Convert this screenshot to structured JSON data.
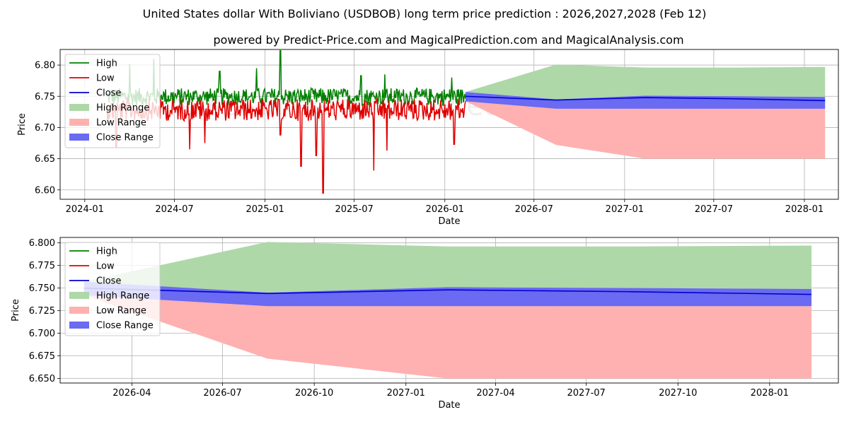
{
  "header": {
    "title": "United States dollar With Boliviano (USDBOB) long term price prediction : 2026,2027,2028 (Feb 12)",
    "subtitle": "powered by Predict-Price.com and MagicalPrediction.com and MagicalAnalysis.com"
  },
  "watermark": "Predict-Price.com",
  "colors": {
    "high": "#008000",
    "low": "#e00000",
    "close": "#0000cc",
    "high_range": "#aed8a8",
    "low_range": "#ffb0b0",
    "close_range": "#6a6af2"
  },
  "legend": [
    "High",
    "Low",
    "Close",
    "High Range",
    "Low Range",
    "Close Range"
  ],
  "chart_data": [
    {
      "type": "line",
      "title": "",
      "xlabel": "Date",
      "ylabel": "Price",
      "xlim": [
        "2023-11-12",
        "2028-03-10"
      ],
      "ylim": [
        6.585,
        6.825
      ],
      "x_ticks": [
        {
          "date": "2024-01-01",
          "label": "2024-01"
        },
        {
          "date": "2024-07-01",
          "label": "2024-07"
        },
        {
          "date": "2025-01-01",
          "label": "2025-01"
        },
        {
          "date": "2025-07-01",
          "label": "2025-07"
        },
        {
          "date": "2026-01-01",
          "label": "2026-01"
        },
        {
          "date": "2026-07-01",
          "label": "2026-07"
        },
        {
          "date": "2027-01-01",
          "label": "2027-01"
        },
        {
          "date": "2027-07-01",
          "label": "2027-07"
        },
        {
          "date": "2028-01-01",
          "label": "2028-01"
        }
      ],
      "y_ticks": [
        6.6,
        6.65,
        6.7,
        6.75,
        6.8
      ],
      "y_tick_labels": [
        "6.60",
        "6.65",
        "6.70",
        "6.75",
        "6.80"
      ],
      "grid": true,
      "legend_position": "top-left",
      "historical": {
        "start": "2024-02-15",
        "end": "2026-02-12",
        "high_base": 6.745,
        "low_base": 6.735,
        "spikes": [
          {
            "series": "high",
            "date": "2024-04-01",
            "value": 6.802
          },
          {
            "series": "high",
            "date": "2024-05-20",
            "value": 6.81
          },
          {
            "series": "high",
            "date": "2024-10-01",
            "value": 6.79
          },
          {
            "series": "high",
            "date": "2024-12-15",
            "value": 6.795
          },
          {
            "series": "high",
            "date": "2025-02-01",
            "value": 6.823
          },
          {
            "series": "high",
            "date": "2025-07-15",
            "value": 6.783
          },
          {
            "series": "high",
            "date": "2025-09-01",
            "value": 6.785
          },
          {
            "series": "high",
            "date": "2026-01-15",
            "value": 6.78
          },
          {
            "series": "low",
            "date": "2024-03-05",
            "value": 6.668
          },
          {
            "series": "low",
            "date": "2024-08-01",
            "value": 6.665
          },
          {
            "series": "low",
            "date": "2024-09-01",
            "value": 6.675
          },
          {
            "series": "low",
            "date": "2025-02-01",
            "value": 6.688
          },
          {
            "series": "low",
            "date": "2025-03-15",
            "value": 6.638
          },
          {
            "series": "low",
            "date": "2025-04-15",
            "value": 6.655
          },
          {
            "series": "low",
            "date": "2025-04-29",
            "value": 6.595
          },
          {
            "series": "low",
            "date": "2025-08-10",
            "value": 6.631
          },
          {
            "series": "low",
            "date": "2025-09-05",
            "value": 6.663
          },
          {
            "series": "low",
            "date": "2026-01-20",
            "value": 6.673
          }
        ]
      },
      "forecast": {
        "dates": [
          "2026-02-12",
          "2026-08-15",
          "2027-02-12",
          "2027-08-15",
          "2028-02-12"
        ],
        "high_range_top": [
          6.757,
          6.801,
          6.796,
          6.796,
          6.797
        ],
        "low_range_bottom": [
          6.742,
          6.672,
          6.65,
          6.65,
          6.65
        ],
        "close_range_top": [
          6.757,
          6.745,
          6.751,
          6.75,
          6.749
        ],
        "close_range_bottom": [
          6.742,
          6.73,
          6.73,
          6.73,
          6.73
        ],
        "close": [
          6.75,
          6.744,
          6.748,
          6.746,
          6.743
        ]
      }
    },
    {
      "type": "line",
      "title": "",
      "xlabel": "Date",
      "ylabel": "Price",
      "xlim": [
        "2026-01-19",
        "2028-03-10"
      ],
      "ylim": [
        6.645,
        6.806
      ],
      "x_ticks": [
        {
          "date": "2026-04-01",
          "label": "2026-04"
        },
        {
          "date": "2026-07-01",
          "label": "2026-07"
        },
        {
          "date": "2026-10-01",
          "label": "2026-10"
        },
        {
          "date": "2027-01-01",
          "label": "2027-01"
        },
        {
          "date": "2027-04-01",
          "label": "2027-04"
        },
        {
          "date": "2027-07-01",
          "label": "2027-07"
        },
        {
          "date": "2027-10-01",
          "label": "2027-10"
        },
        {
          "date": "2028-01-01",
          "label": "2028-01"
        }
      ],
      "y_ticks": [
        6.65,
        6.675,
        6.7,
        6.725,
        6.75,
        6.775,
        6.8
      ],
      "y_tick_labels": [
        "6.650",
        "6.675",
        "6.700",
        "6.725",
        "6.750",
        "6.775",
        "6.800"
      ],
      "grid": true,
      "legend_position": "top-left",
      "forecast": {
        "dates": [
          "2026-02-12",
          "2026-08-15",
          "2027-02-12",
          "2027-08-15",
          "2028-02-12"
        ],
        "high_range_top": [
          6.757,
          6.801,
          6.796,
          6.796,
          6.797
        ],
        "low_range_bottom": [
          6.742,
          6.672,
          6.65,
          6.65,
          6.65
        ],
        "close_range_top": [
          6.757,
          6.745,
          6.751,
          6.75,
          6.749
        ],
        "close_range_bottom": [
          6.742,
          6.73,
          6.73,
          6.73,
          6.73
        ],
        "close": [
          6.75,
          6.744,
          6.748,
          6.746,
          6.743
        ]
      }
    }
  ]
}
